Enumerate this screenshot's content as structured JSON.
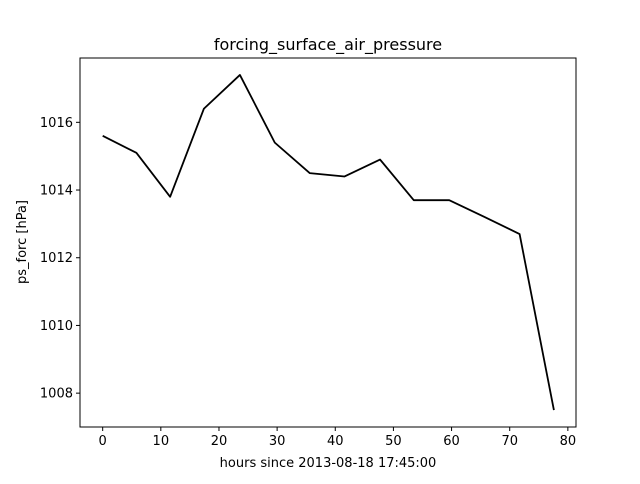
{
  "chart_data": {
    "type": "line",
    "title": "forcing_surface_air_pressure",
    "xlabel": "hours since 2013-08-18 17:45:00",
    "ylabel": "ps_forc [hPa]",
    "xlim": [
      -3.9,
      81.4
    ],
    "ylim": [
      1007.0,
      1017.9
    ],
    "x_ticks": [
      0,
      10,
      20,
      30,
      40,
      50,
      60,
      70,
      80
    ],
    "y_ticks": [
      1008,
      1010,
      1012,
      1014,
      1016
    ],
    "grid": false,
    "legend": "none",
    "series": [
      {
        "color": "#000000",
        "x": [
          0,
          5.8,
          11.6,
          17.4,
          23.6,
          29.6,
          35.6,
          41.6,
          47.7,
          53.5,
          59.6,
          65.7,
          71.7,
          77.6
        ],
        "y": [
          1015.6,
          1015.1,
          1013.8,
          1016.4,
          1017.4,
          1015.4,
          1014.5,
          1014.4,
          1014.9,
          1013.7,
          1013.7,
          1013.2,
          1012.7,
          1007.5
        ]
      }
    ]
  }
}
